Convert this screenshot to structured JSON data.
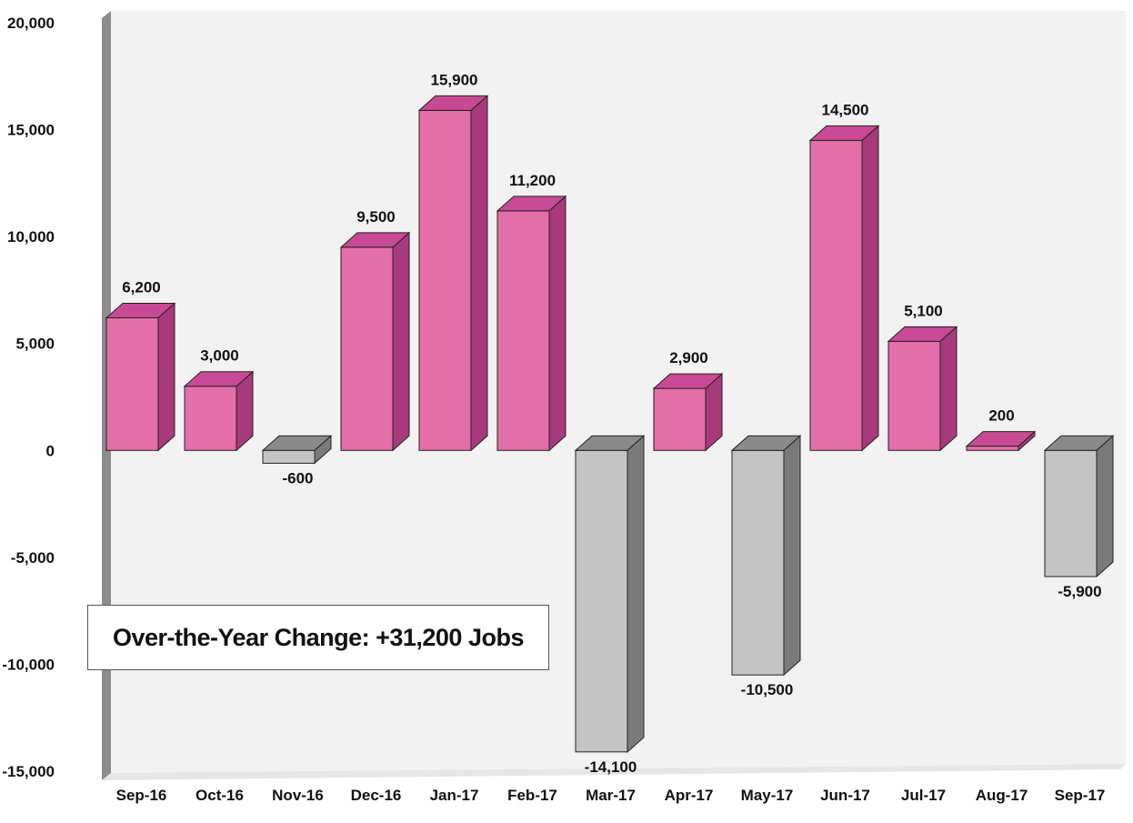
{
  "annotation": "Over-the-Year Change: +31,200 Jobs",
  "colors": {
    "positive_front": "#e46ea8",
    "positive_top": "#c84a94",
    "positive_side": "#a83a7c",
    "negative_front": "#c4c4c4",
    "negative_top": "#8a8a8a",
    "negative_side": "#7a7a7a",
    "plot_bg": "#f2f2f2",
    "wall": "#8c8c8c"
  },
  "chart_data": {
    "type": "bar",
    "categories": [
      "Sep-16",
      "Oct-16",
      "Nov-16",
      "Dec-16",
      "Jan-17",
      "Feb-17",
      "Mar-17",
      "Apr-17",
      "May-17",
      "Jun-17",
      "Jul-17",
      "Aug-17",
      "Sep-17"
    ],
    "values": [
      6200,
      3000,
      -600,
      9500,
      15900,
      11200,
      -14100,
      2900,
      -10500,
      14500,
      5100,
      200,
      -5900
    ],
    "value_labels": [
      "6,200",
      "3,000",
      "-600",
      "9,500",
      "15,900",
      "11,200",
      "-14,100",
      "2,900",
      "-10,500",
      "14,500",
      "5,100",
      "200",
      "-5,900"
    ],
    "yticks": [
      20000,
      15000,
      10000,
      5000,
      0,
      -5000,
      -10000,
      -15000
    ],
    "ytick_labels": [
      "20,000",
      "15,000",
      "10,000",
      "5,000",
      "0",
      "-5,000",
      "-10,000",
      "-15,000"
    ],
    "ylim": [
      -15000,
      20000
    ],
    "title": "",
    "xlabel": "",
    "ylabel": "",
    "style": "3d-bar",
    "grid": false,
    "legend": "none"
  }
}
